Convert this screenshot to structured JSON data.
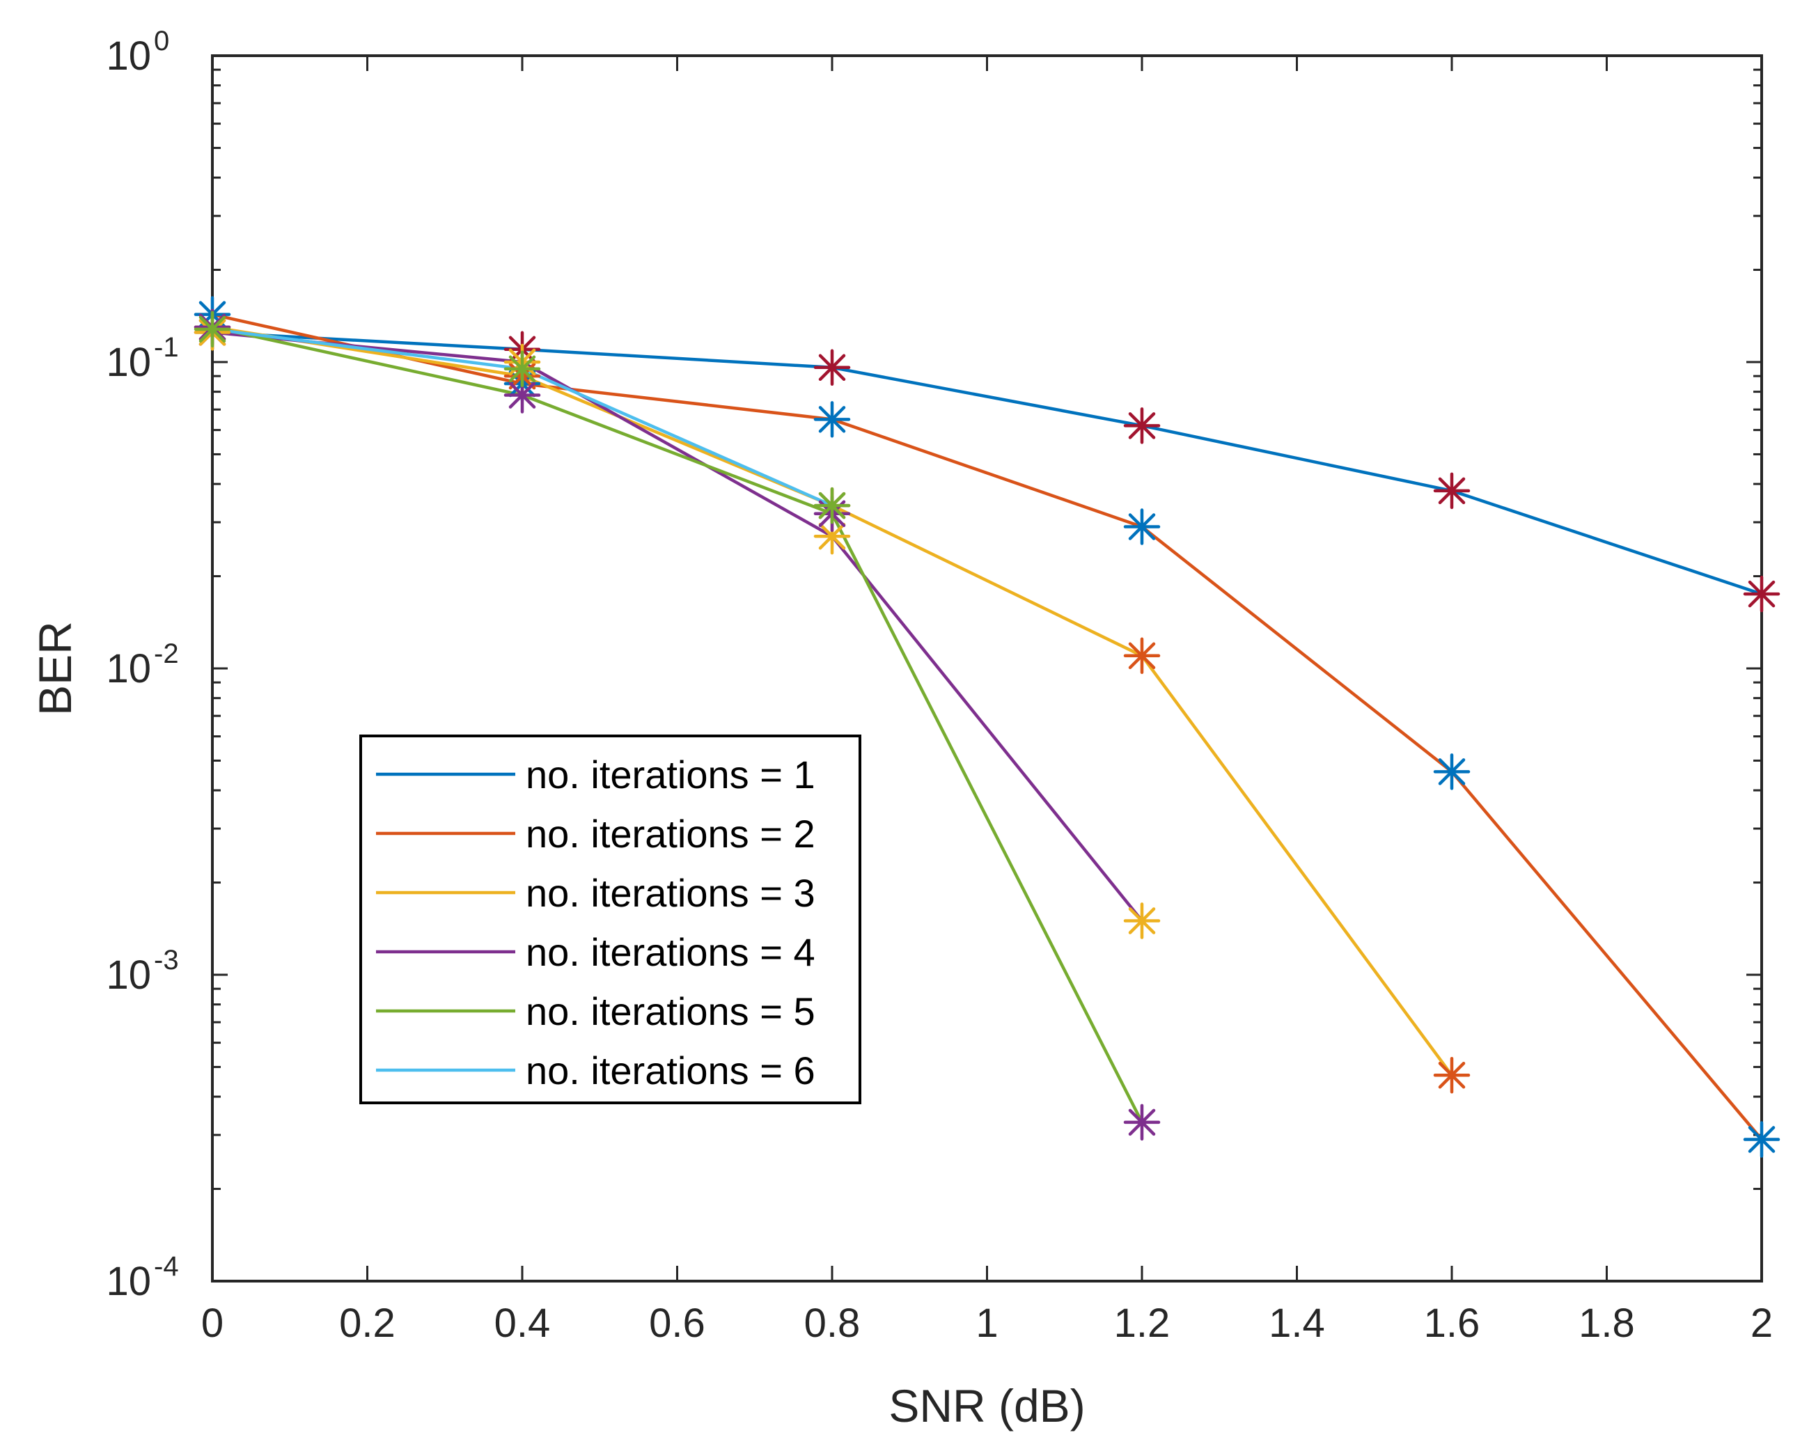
{
  "chart_data": {
    "type": "line",
    "title": "",
    "xlabel": "SNR (dB)",
    "ylabel": "BER",
    "xlim": [
      0,
      2
    ],
    "ylim": [
      0.0001,
      1
    ],
    "yscale": "log",
    "grid": false,
    "legend_position": "center-left",
    "x_ticks": [
      {
        "value": 0,
        "label": "0"
      },
      {
        "value": 0.2,
        "label": "0.2"
      },
      {
        "value": 0.4,
        "label": "0.4"
      },
      {
        "value": 0.6,
        "label": "0.6"
      },
      {
        "value": 0.8,
        "label": "0.8"
      },
      {
        "value": 1,
        "label": "1"
      },
      {
        "value": 1.2,
        "label": "1.2"
      },
      {
        "value": 1.4,
        "label": "1.4"
      },
      {
        "value": 1.6,
        "label": "1.6"
      },
      {
        "value": 1.8,
        "label": "1.8"
      },
      {
        "value": 2,
        "label": "2"
      }
    ],
    "y_ticks": [
      {
        "value": 0.0001,
        "base": "10",
        "exp": "-4"
      },
      {
        "value": 0.001,
        "base": "10",
        "exp": "-3"
      },
      {
        "value": 0.01,
        "base": "10",
        "exp": "-2"
      },
      {
        "value": 0.1,
        "base": "10",
        "exp": "-1"
      },
      {
        "value": 1,
        "base": "10",
        "exp": "0"
      }
    ],
    "series": [
      {
        "name": "no. iterations = 1",
        "color": "#0072BD",
        "marker_color": "#A2142F",
        "x": [
          0,
          0.4,
          0.8,
          1.2,
          1.6,
          2
        ],
        "y": [
          0.125,
          0.11,
          0.096,
          0.062,
          0.038,
          0.0175
        ]
      },
      {
        "name": "no. iterations = 2",
        "color": "#D95319",
        "marker_color": "#0072BD",
        "x": [
          0,
          0.4,
          0.8,
          1.2,
          1.6,
          2
        ],
        "y": [
          0.143,
          0.085,
          0.065,
          0.029,
          0.0046,
          0.00029
        ]
      },
      {
        "name": "no. iterations = 3",
        "color": "#EDB120",
        "marker_color": "#D95319",
        "x": [
          0,
          0.4,
          0.8,
          1.2,
          1.6
        ],
        "y": [
          0.13,
          0.09,
          0.034,
          0.011,
          0.00047
        ]
      },
      {
        "name": "no. iterations = 4",
        "color": "#7E2F8E",
        "marker_color": "#EDB120",
        "x": [
          0,
          0.4,
          0.8,
          1.2
        ],
        "y": [
          0.125,
          0.1,
          0.027,
          0.0015
        ]
      },
      {
        "name": "no. iterations = 5",
        "color": "#77AC30",
        "marker_color": "#7E2F8E",
        "x": [
          0,
          0.4,
          0.8,
          1.2
        ],
        "y": [
          0.13,
          0.078,
          0.032,
          0.00033
        ]
      },
      {
        "name": "no. iterations = 6",
        "color": "#4DBEEE",
        "marker_color": "#77AC30",
        "x": [
          0,
          0.4,
          0.8
        ],
        "y": [
          0.128,
          0.095,
          0.034
        ]
      }
    ]
  }
}
